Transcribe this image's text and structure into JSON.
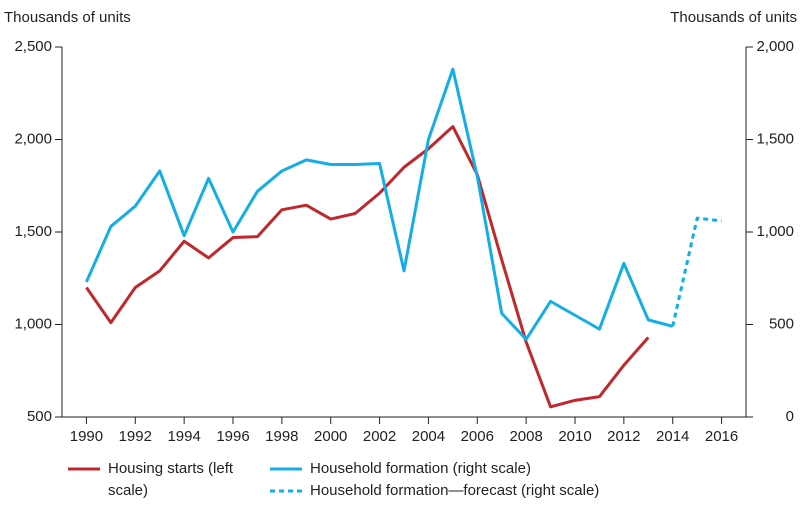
{
  "chart_data": {
    "type": "line",
    "y_label": "Thousands of units",
    "y2_label": "Thousands of units",
    "x": [
      1990,
      1991,
      1992,
      1993,
      1994,
      1995,
      1996,
      1997,
      1998,
      1999,
      2000,
      2001,
      2002,
      2003,
      2004,
      2005,
      2006,
      2007,
      2008,
      2009,
      2010,
      2011,
      2012,
      2013,
      2014,
      2015,
      2016
    ],
    "xlim": [
      1989,
      2017
    ],
    "xticks": [
      1990,
      1992,
      1994,
      1996,
      1998,
      2000,
      2002,
      2004,
      2006,
      2008,
      2010,
      2012,
      2014,
      2016
    ],
    "ylim": [
      500,
      2500
    ],
    "yticks": [
      500,
      {
        "value": 1000,
        "label": "1,000"
      },
      {
        "value": 1500,
        "label": "1,500"
      },
      {
        "value": 2000,
        "label": "2,000"
      },
      {
        "value": 2500,
        "label": "2,500"
      }
    ],
    "y2lim": [
      0,
      2000
    ],
    "y2ticks": [
      0,
      500,
      {
        "value": 1000,
        "label": "1,000"
      },
      {
        "value": 1500,
        "label": "1,500"
      },
      {
        "value": 2000,
        "label": "2,000"
      }
    ],
    "series": [
      {
        "name": "Housing starts (left scale)",
        "color": "#c0282d",
        "dashed": false,
        "values": [
          1200,
          1010,
          1200,
          1290,
          1450,
          1360,
          1470,
          1475,
          1620,
          1645,
          1570,
          1600,
          1710,
          1850,
          1950,
          2070,
          1810,
          1350,
          905,
          555,
          590,
          610,
          780,
          930,
          null,
          null,
          null
        ]
      },
      {
        "name": "Household formation (right scale)",
        "color": "#14aee6",
        "axis": "y2",
        "dashed": false,
        "values": [
          730,
          1030,
          1140,
          1330,
          980,
          1290,
          1000,
          1220,
          1330,
          1390,
          1365,
          1365,
          1370,
          790,
          1500,
          1880,
          1300,
          560,
          420,
          625,
          550,
          475,
          830,
          525,
          490,
          null,
          null
        ]
      },
      {
        "name": "Household formation—forecast (right scale)",
        "color": "#14aee6",
        "axis": "y2",
        "dashed": true,
        "values": [
          null,
          null,
          null,
          null,
          null,
          null,
          null,
          null,
          null,
          null,
          null,
          null,
          null,
          null,
          null,
          null,
          null,
          null,
          null,
          null,
          null,
          null,
          null,
          null,
          490,
          1075,
          1060
        ]
      }
    ]
  }
}
